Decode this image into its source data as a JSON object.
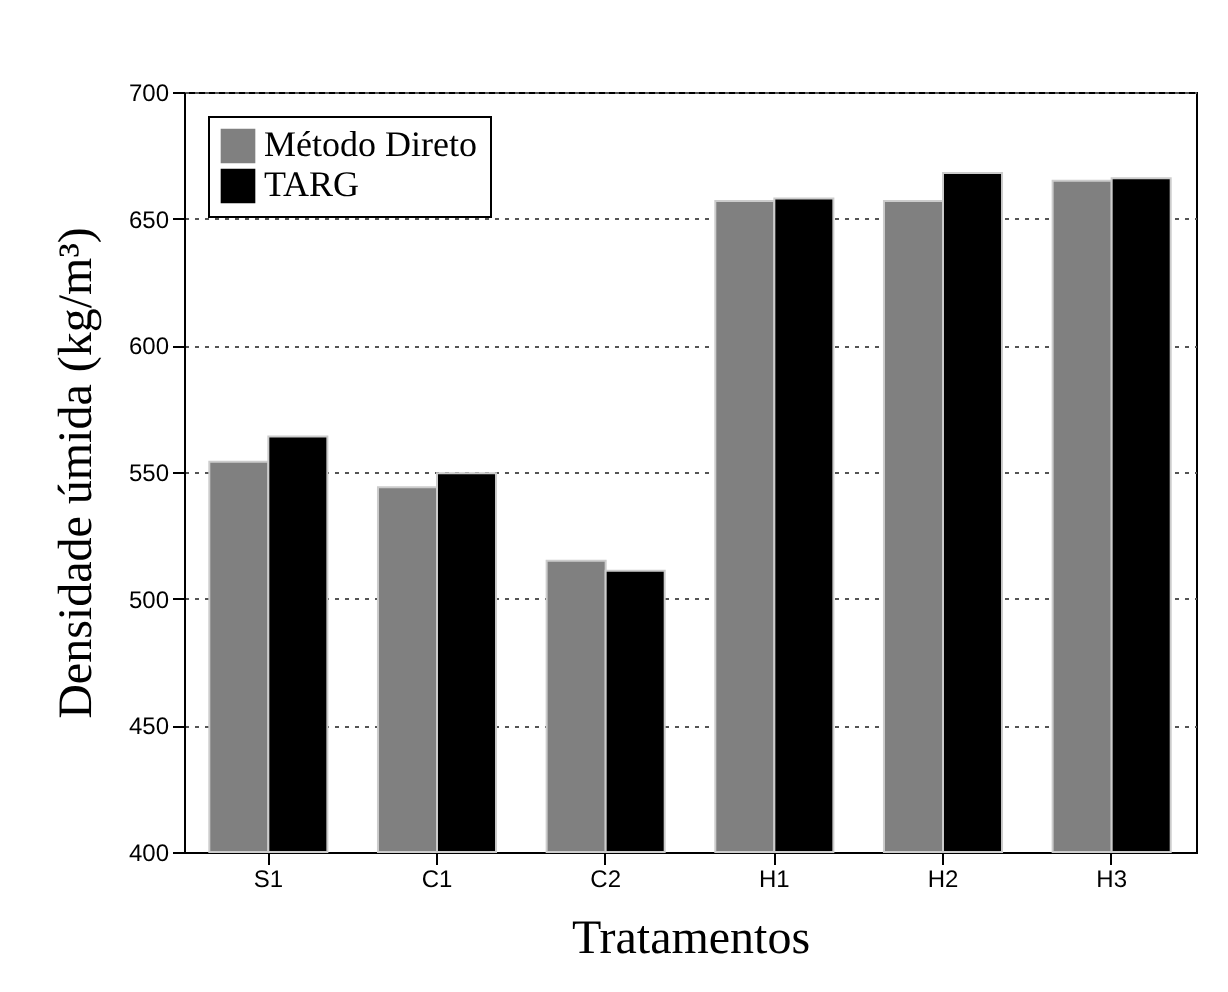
{
  "chart_data": {
    "type": "bar",
    "xlabel": "Tratamentos",
    "ylabel": "Densidade úmida (kg/m³)",
    "categories": [
      "S1",
      "C1",
      "C2",
      "H1",
      "H2",
      "H3"
    ],
    "series": [
      {
        "name": "Método Direto",
        "color": "#808080",
        "values": [
          554,
          544,
          515,
          657,
          657,
          665
        ]
      },
      {
        "name": "TARG",
        "color": "#000000",
        "values": [
          564,
          549.5,
          511,
          658,
          668,
          666
        ]
      }
    ],
    "ylim": [
      400,
      700
    ],
    "yticks": [
      400,
      450,
      500,
      550,
      600,
      650,
      700
    ],
    "grid": "y",
    "legend": "top left"
  }
}
